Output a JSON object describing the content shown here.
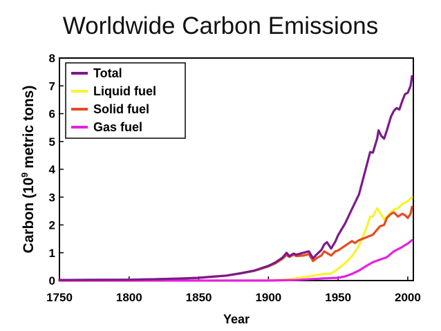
{
  "chart_data": {
    "type": "line",
    "title": "Worldwide Carbon Emissions",
    "xlabel": "Year",
    "ylabel_main": "Carbon (10",
    "ylabel_sup": "9",
    "ylabel_rest": " metric tons)",
    "xlim": [
      1750,
      2004
    ],
    "ylim": [
      0,
      8
    ],
    "x_ticks": [
      1750,
      1800,
      1850,
      1900,
      1950,
      2000
    ],
    "y_ticks": [
      0,
      1,
      2,
      3,
      4,
      5,
      6,
      7,
      8
    ],
    "grid": false,
    "legend_position": "top-left",
    "series": [
      {
        "name": "Total",
        "color": "#7b1a8a",
        "points": [
          [
            1750,
            0.02
          ],
          [
            1800,
            0.03
          ],
          [
            1820,
            0.05
          ],
          [
            1840,
            0.08
          ],
          [
            1850,
            0.1
          ],
          [
            1860,
            0.14
          ],
          [
            1870,
            0.18
          ],
          [
            1880,
            0.26
          ],
          [
            1890,
            0.36
          ],
          [
            1900,
            0.53
          ],
          [
            1905,
            0.65
          ],
          [
            1910,
            0.82
          ],
          [
            1913,
            1.0
          ],
          [
            1915,
            0.88
          ],
          [
            1918,
            0.97
          ],
          [
            1920,
            0.93
          ],
          [
            1925,
            1.0
          ],
          [
            1929,
            1.05
          ],
          [
            1932,
            0.8
          ],
          [
            1935,
            0.96
          ],
          [
            1938,
            1.1
          ],
          [
            1940,
            1.3
          ],
          [
            1942,
            1.38
          ],
          [
            1945,
            1.15
          ],
          [
            1948,
            1.4
          ],
          [
            1950,
            1.63
          ],
          [
            1955,
            2.05
          ],
          [
            1960,
            2.58
          ],
          [
            1965,
            3.1
          ],
          [
            1970,
            4.05
          ],
          [
            1973,
            4.62
          ],
          [
            1975,
            4.6
          ],
          [
            1978,
            5.1
          ],
          [
            1979,
            5.4
          ],
          [
            1981,
            5.2
          ],
          [
            1983,
            5.1
          ],
          [
            1985,
            5.4
          ],
          [
            1988,
            5.9
          ],
          [
            1990,
            6.1
          ],
          [
            1992,
            6.2
          ],
          [
            1994,
            6.15
          ],
          [
            1996,
            6.45
          ],
          [
            1998,
            6.7
          ],
          [
            2000,
            6.75
          ],
          [
            2002,
            7.0
          ],
          [
            2003,
            7.35
          ]
        ]
      },
      {
        "name": "Liquid fuel",
        "color": "#f7f42a",
        "points": [
          [
            1750,
            0.0
          ],
          [
            1870,
            0.0
          ],
          [
            1900,
            0.01
          ],
          [
            1910,
            0.03
          ],
          [
            1920,
            0.08
          ],
          [
            1930,
            0.16
          ],
          [
            1940,
            0.24
          ],
          [
            1945,
            0.25
          ],
          [
            1950,
            0.42
          ],
          [
            1955,
            0.62
          ],
          [
            1960,
            0.88
          ],
          [
            1965,
            1.25
          ],
          [
            1970,
            1.85
          ],
          [
            1973,
            2.3
          ],
          [
            1975,
            2.3
          ],
          [
            1978,
            2.6
          ],
          [
            1980,
            2.45
          ],
          [
            1983,
            2.2
          ],
          [
            1985,
            2.3
          ],
          [
            1990,
            2.55
          ],
          [
            1993,
            2.6
          ],
          [
            1996,
            2.75
          ],
          [
            2000,
            2.85
          ],
          [
            2003,
            3.0
          ]
        ]
      },
      {
        "name": "Solid fuel",
        "color": "#e84a20",
        "points": [
          [
            1750,
            0.02
          ],
          [
            1800,
            0.03
          ],
          [
            1820,
            0.05
          ],
          [
            1840,
            0.08
          ],
          [
            1850,
            0.1
          ],
          [
            1860,
            0.14
          ],
          [
            1870,
            0.18
          ],
          [
            1880,
            0.26
          ],
          [
            1890,
            0.35
          ],
          [
            1900,
            0.51
          ],
          [
            1905,
            0.62
          ],
          [
            1910,
            0.78
          ],
          [
            1913,
            0.92
          ],
          [
            1915,
            0.85
          ],
          [
            1918,
            0.93
          ],
          [
            1920,
            0.88
          ],
          [
            1925,
            0.9
          ],
          [
            1929,
            0.95
          ],
          [
            1932,
            0.7
          ],
          [
            1935,
            0.82
          ],
          [
            1938,
            0.9
          ],
          [
            1940,
            1.05
          ],
          [
            1945,
            0.9
          ],
          [
            1948,
            1.05
          ],
          [
            1950,
            1.08
          ],
          [
            1955,
            1.25
          ],
          [
            1960,
            1.42
          ],
          [
            1962,
            1.35
          ],
          [
            1965,
            1.45
          ],
          [
            1970,
            1.55
          ],
          [
            1975,
            1.65
          ],
          [
            1980,
            1.95
          ],
          [
            1983,
            2.0
          ],
          [
            1985,
            2.25
          ],
          [
            1988,
            2.4
          ],
          [
            1990,
            2.45
          ],
          [
            1993,
            2.3
          ],
          [
            1996,
            2.4
          ],
          [
            1998,
            2.35
          ],
          [
            2000,
            2.25
          ],
          [
            2002,
            2.4
          ],
          [
            2003,
            2.65
          ]
        ]
      },
      {
        "name": "Gas fuel",
        "color": "#e51fe8",
        "points": [
          [
            1750,
            0.0
          ],
          [
            1880,
            0.0
          ],
          [
            1900,
            0.0
          ],
          [
            1910,
            0.01
          ],
          [
            1920,
            0.02
          ],
          [
            1930,
            0.05
          ],
          [
            1940,
            0.08
          ],
          [
            1950,
            0.1
          ],
          [
            1955,
            0.15
          ],
          [
            1960,
            0.24
          ],
          [
            1965,
            0.36
          ],
          [
            1970,
            0.52
          ],
          [
            1975,
            0.66
          ],
          [
            1980,
            0.75
          ],
          [
            1985,
            0.84
          ],
          [
            1990,
            1.05
          ],
          [
            1995,
            1.18
          ],
          [
            2000,
            1.33
          ],
          [
            2003,
            1.45
          ]
        ]
      }
    ]
  }
}
